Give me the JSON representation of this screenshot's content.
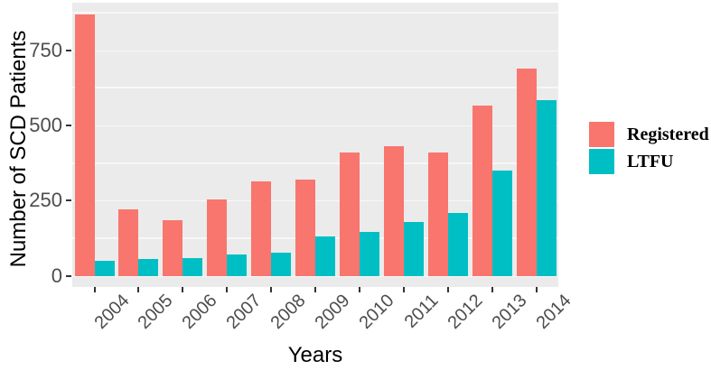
{
  "chart_data": {
    "type": "bar",
    "title": "",
    "xlabel": "Years",
    "ylabel": "Number of SCD Patients",
    "categories": [
      "2004",
      "2005",
      "2006",
      "2007",
      "2008",
      "2009",
      "2010",
      "2011",
      "2012",
      "2013",
      "2014"
    ],
    "series": [
      {
        "name": "Registered",
        "color": "#F8766D",
        "values": [
          870,
          220,
          185,
          255,
          315,
          320,
          410,
          430,
          410,
          565,
          690
        ]
      },
      {
        "name": "LTFU",
        "color": "#00BFC4",
        "values": [
          50,
          55,
          58,
          72,
          76,
          130,
          145,
          178,
          208,
          350,
          585
        ]
      }
    ],
    "y_ticks": [
      0,
      250,
      500,
      750
    ],
    "y_minor_ticks": [
      125,
      375,
      625,
      875
    ],
    "ylim": [
      0,
      908
    ],
    "grid": true,
    "legend_position": "right",
    "panel_background": "#EBEBEB",
    "gridline_color": "#FFFFFF",
    "tick_label_color": "#4D4D4D",
    "bar_layout": "dodged",
    "x_label_rotation_deg": 45
  }
}
